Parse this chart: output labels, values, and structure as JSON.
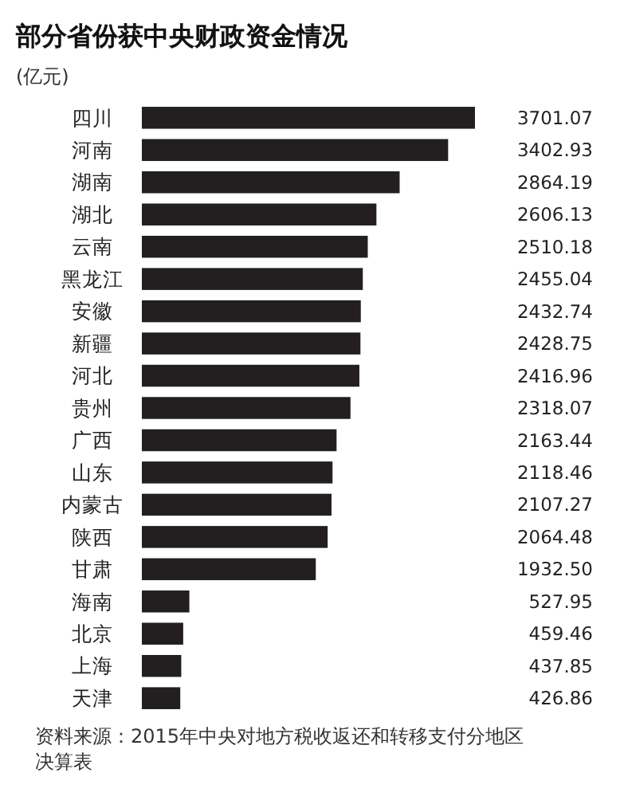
{
  "chart_data": {
    "type": "bar",
    "orientation": "horizontal",
    "title": "部分省份获中央财政资金情况",
    "ylabel": "(亿元)",
    "categories": [
      "四川",
      "河南",
      "湖南",
      "湖北",
      "云南",
      "黑龙江",
      "安徽",
      "新疆",
      "河北",
      "贵州",
      "广西",
      "山东",
      "内蒙古",
      "陕西",
      "甘肃",
      "海南",
      "北京",
      "上海",
      "天津"
    ],
    "values": [
      3701.07,
      3402.93,
      2864.19,
      2606.13,
      2510.18,
      2455.04,
      2432.74,
      2428.75,
      2416.96,
      2318.07,
      2163.44,
      2118.46,
      2107.27,
      2064.48,
      1932.5,
      527.95,
      459.46,
      437.85,
      426.86
    ],
    "value_labels": [
      "3701.07",
      "3402.93",
      "2864.19",
      "2606.13",
      "2510.18",
      "2455.04",
      "2432.74",
      "2428.75",
      "2416.96",
      "2318.07",
      "2163.44",
      "2118.46",
      "2107.27",
      "2064.48",
      "1932.50",
      "527.95",
      "459.46",
      "437.85",
      "426.86"
    ],
    "color": "#231f20",
    "annotations": [
      "资料来源：2015年中央对地方税收返还和转移支付分地区决算表"
    ]
  }
}
